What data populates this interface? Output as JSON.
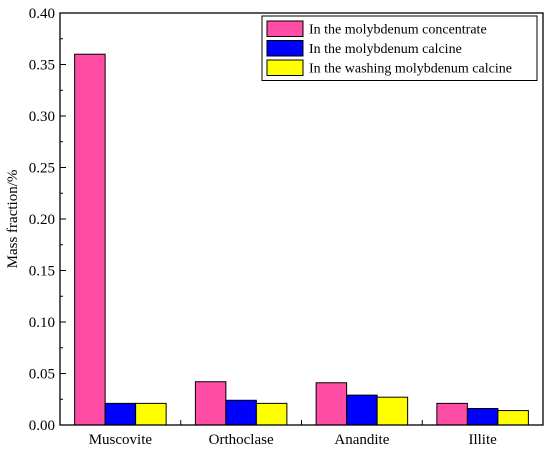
{
  "chart_data": {
    "type": "bar",
    "title": "",
    "xlabel": "",
    "ylabel": "Mass fraction/%",
    "ylim": [
      0,
      0.4
    ],
    "yticks": [
      "0.00",
      "0.05",
      "0.10",
      "0.15",
      "0.20",
      "0.25",
      "0.30",
      "0.35",
      "0.40"
    ],
    "categories": [
      "Muscovite",
      "Orthoclase",
      "Anandite",
      "Illite"
    ],
    "legend_position": "top-right",
    "grid": false,
    "series": [
      {
        "name": "In the molybdenum concentrate",
        "color": "#ff4da6",
        "values": [
          0.36,
          0.042,
          0.041,
          0.021
        ]
      },
      {
        "name": "In the molybdenum calcine",
        "color": "#0000ff",
        "values": [
          0.021,
          0.024,
          0.029,
          0.016
        ]
      },
      {
        "name": "In the washing molybdenum calcine",
        "color": "#ffff00",
        "values": [
          0.021,
          0.021,
          0.027,
          0.014
        ]
      }
    ]
  }
}
